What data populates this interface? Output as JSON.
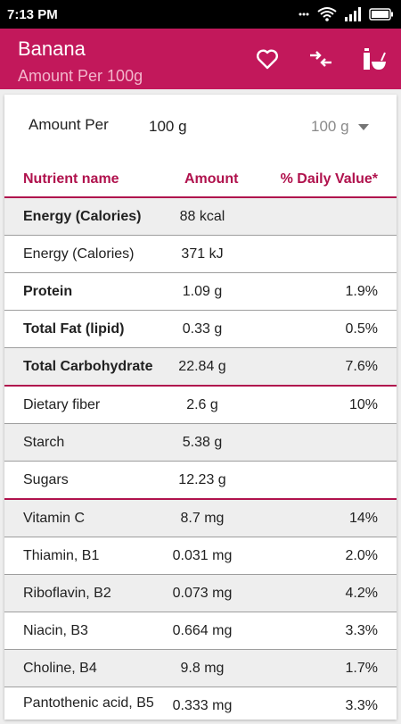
{
  "status_bar": {
    "time": "7:13 PM"
  },
  "app_bar": {
    "title": "Banana",
    "subtitle": "Amount Per 100g",
    "actions": [
      "heart-icon",
      "compare-icon",
      "bottle-bowl-icon"
    ],
    "color": "#c2185b"
  },
  "amount_per": {
    "label": "Amount Per",
    "value": "100 g",
    "selected_option": "100 g"
  },
  "table": {
    "headers": {
      "name": "Nutrient name",
      "amount": "Amount",
      "dv": "% Daily Value*"
    },
    "accent_color": "#b0124d",
    "rows": [
      {
        "name": "Energy (Calories)",
        "amount": "88 kcal",
        "dv": "",
        "bold": true,
        "shaded": true
      },
      {
        "name": "Energy (Calories)",
        "amount": "371 kJ",
        "dv": "",
        "bold": false,
        "shaded": false
      },
      {
        "name": "Protein",
        "amount": "1.09 g",
        "dv": "1.9%",
        "bold": true,
        "shaded": false
      },
      {
        "name": "Total Fat (lipid)",
        "amount": "0.33 g",
        "dv": "0.5%",
        "bold": true,
        "shaded": false
      },
      {
        "name": "Total Carbohydrate",
        "amount": "22.84 g",
        "dv": "7.6%",
        "bold": true,
        "shaded": true
      },
      {
        "name": "Dietary fiber",
        "amount": "2.6 g",
        "dv": "10%",
        "bold": false,
        "shaded": false,
        "accent": true
      },
      {
        "name": "Starch",
        "amount": "5.38 g",
        "dv": "",
        "bold": false,
        "shaded": true
      },
      {
        "name": "Sugars",
        "amount": "12.23 g",
        "dv": "",
        "bold": false,
        "shaded": false
      },
      {
        "name": "Vitamin C",
        "amount": "8.7 mg",
        "dv": "14%",
        "bold": false,
        "shaded": true,
        "accent": true
      },
      {
        "name": "Thiamin, B1",
        "amount": "0.031 mg",
        "dv": "2.0%",
        "bold": false,
        "shaded": false
      },
      {
        "name": "Riboflavin, B2",
        "amount": "0.073 mg",
        "dv": "4.2%",
        "bold": false,
        "shaded": true
      },
      {
        "name": "Niacin, B3",
        "amount": "0.664 mg",
        "dv": "3.3%",
        "bold": false,
        "shaded": false
      },
      {
        "name": "Choline, B4",
        "amount": "9.8 mg",
        "dv": "1.7%",
        "bold": false,
        "shaded": true
      },
      {
        "name": "Pantothenic acid, B5",
        "amount": "0.333 mg",
        "dv": "3.3%",
        "bold": false,
        "shaded": false,
        "tall": true
      }
    ]
  }
}
